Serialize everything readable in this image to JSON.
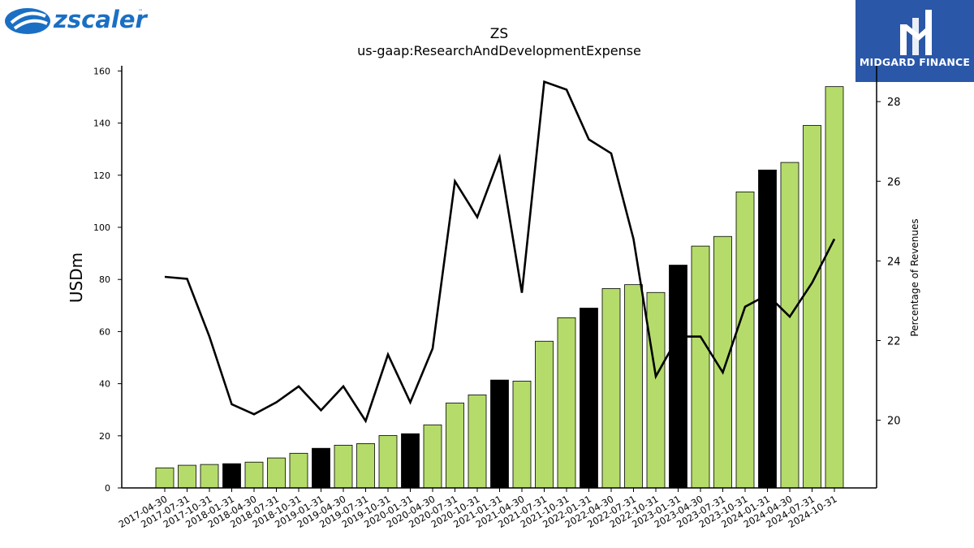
{
  "brand": {
    "left_logo_text": "zscaler",
    "left_logo_tm": "™",
    "left_logo_color": "#1a6fc4",
    "right_logo_text": "MIDGARD FINANCE",
    "right_logo_bg": "#2a57a8"
  },
  "chart_data": {
    "type": "bar",
    "title": "ZS",
    "subtitle": "us-gaap:ResearchAndDevelopmentExpense",
    "ylabel": "USDm",
    "y2label": "Percentage of Revenues",
    "ylim": [
      0,
      162
    ],
    "y2lim": [
      18.3,
      28.9
    ],
    "yticks": [
      0,
      20,
      40,
      60,
      80,
      100,
      120,
      140,
      160
    ],
    "y2ticks": [
      20,
      22,
      24,
      26,
      28
    ],
    "colors": {
      "bar_green": "#b5dc6b",
      "bar_black": "#000000",
      "line": "#000000"
    },
    "categories": [
      "2017-04-30",
      "2017-07-31",
      "2017-10-31",
      "2018-01-31",
      "2018-04-30",
      "2018-07-31",
      "2018-10-31",
      "2019-01-31",
      "2019-04-30",
      "2019-07-31",
      "2019-10-31",
      "2020-01-31",
      "2020-04-30",
      "2020-07-31",
      "2020-10-31",
      "2021-01-31",
      "2021-04-30",
      "2021-07-31",
      "2021-10-31",
      "2022-01-31",
      "2022-04-30",
      "2022-07-31",
      "2022-10-31",
      "2023-01-31",
      "2023-04-30",
      "2023-07-31",
      "2023-10-31",
      "2024-01-31",
      "2024-04-30",
      "2024-07-31",
      "2024-10-31"
    ],
    "series": [
      {
        "type": "bar",
        "values": [
          7.7,
          8.7,
          9.0,
          9.3,
          9.9,
          11.5,
          13.3,
          15.2,
          16.4,
          17.0,
          20.1,
          20.8,
          24.2,
          32.6,
          35.7,
          41.4,
          41.0,
          56.3,
          65.3,
          69.0,
          76.5,
          78.0,
          75.0,
          85.5,
          92.8,
          96.5,
          113.6,
          122.0,
          124.9,
          139.1,
          154.0
        ],
        "highlight": [
          false,
          false,
          false,
          true,
          false,
          false,
          false,
          true,
          false,
          false,
          false,
          true,
          false,
          false,
          false,
          true,
          false,
          false,
          false,
          true,
          false,
          false,
          false,
          true,
          false,
          false,
          false,
          true,
          false,
          false,
          false
        ]
      },
      {
        "type": "line",
        "axis": "right",
        "values": [
          23.6,
          23.55,
          22.1,
          20.4,
          20.15,
          20.45,
          20.85,
          20.25,
          20.85,
          19.98,
          21.65,
          20.45,
          21.8,
          26.0,
          25.1,
          26.6,
          23.2,
          28.5,
          28.3,
          27.05,
          26.7,
          24.55,
          21.1,
          22.1,
          22.1,
          21.2,
          22.85,
          23.15,
          22.6,
          23.45,
          24.55
        ]
      }
    ]
  }
}
